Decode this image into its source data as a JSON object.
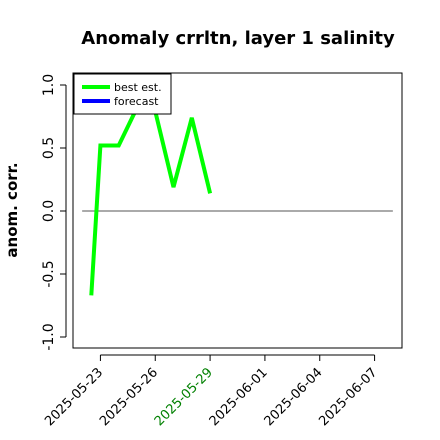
{
  "chart_data": {
    "type": "line",
    "title": "Anomaly crrltn, layer 1 salinity",
    "xlabel": "",
    "ylabel": "anom. corr.",
    "ylim": [
      -1.0,
      1.0
    ],
    "yticks": [
      "-1.0",
      "-0.5",
      "0.0",
      "0.5",
      "1.0"
    ],
    "ytick_values": [
      -1.0,
      -0.5,
      0.0,
      0.5,
      1.0
    ],
    "xlim": [
      "2025-05-21T12:00",
      "2025-06-08T12:00"
    ],
    "xticks": [
      "2025-05-23",
      "2025-05-26",
      "2025-05-29",
      "2025-06-01",
      "2025-06-04",
      "2025-06-07"
    ],
    "xtick_colors": [
      "#000000",
      "#000000",
      "#008000",
      "#000000",
      "#000000",
      "#000000"
    ],
    "reference_line": {
      "y": 0.0,
      "x": [
        "2025-05-22",
        "2025-06-08"
      ],
      "color": "#555555"
    },
    "legend": {
      "position": "top-left",
      "entries": [
        "best est.",
        "forecast"
      ]
    },
    "grid": false,
    "series": [
      {
        "name": "best est.",
        "color": "#00ff00",
        "x": [
          "2025-05-22T12:00",
          "2025-05-23T00:00",
          "2025-05-24T00:00",
          "2025-05-25T00:00",
          "2025-05-26T00:00",
          "2025-05-27T00:00",
          "2025-05-28T00:00",
          "2025-05-29T00:00"
        ],
        "y": [
          -0.67,
          0.52,
          0.52,
          0.82,
          0.79,
          0.19,
          0.74,
          0.14
        ]
      },
      {
        "name": "forecast",
        "color": "#0000ff",
        "x": [],
        "y": []
      }
    ]
  }
}
